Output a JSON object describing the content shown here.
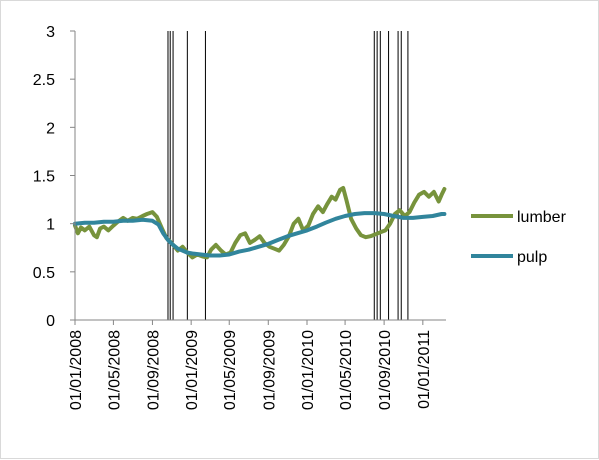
{
  "chart_data": {
    "type": "line",
    "title": "",
    "xlabel": "",
    "ylabel": "",
    "ylim": [
      0,
      3
    ],
    "yticks": [
      0,
      0.5,
      1,
      1.5,
      2,
      2.5,
      3
    ],
    "ytick_labels": [
      "0",
      "0.5",
      "1",
      "1.5",
      "2",
      "2.5",
      "3"
    ],
    "xlim": [
      "2008-01-01",
      "2011-03-15"
    ],
    "xticks": [
      "2008-01-01",
      "2008-05-01",
      "2008-09-01",
      "2009-01-01",
      "2009-05-01",
      "2009-09-01",
      "2010-01-01",
      "2010-05-01",
      "2010-09-01",
      "2011-01-01"
    ],
    "xtick_labels": [
      "01/01/2008",
      "01/05/2008",
      "01/09/2008",
      "01/01/2009",
      "01/05/2009",
      "01/09/2009",
      "01/01/2010",
      "01/05/2010",
      "01/09/2010",
      "01/01/2011"
    ],
    "grid": false,
    "legend": "right",
    "vertical_lines": [
      "2008-10-20",
      "2008-10-27",
      "2008-11-05",
      "2008-12-20",
      "2009-02-15",
      "2010-08-01",
      "2010-08-10",
      "2010-08-20",
      "2010-09-15",
      "2010-10-15",
      "2010-10-25",
      "2010-11-15"
    ],
    "series": [
      {
        "name": "lumber",
        "color": "#77933c",
        "points": [
          [
            "2008-01-01",
            0.98
          ],
          [
            "2008-01-10",
            0.9
          ],
          [
            "2008-01-20",
            0.96
          ],
          [
            "2008-02-01",
            0.93
          ],
          [
            "2008-02-15",
            0.97
          ],
          [
            "2008-03-01",
            0.88
          ],
          [
            "2008-03-10",
            0.86
          ],
          [
            "2008-03-20",
            0.95
          ],
          [
            "2008-04-01",
            0.97
          ],
          [
            "2008-04-15",
            0.93
          ],
          [
            "2008-05-01",
            0.98
          ],
          [
            "2008-05-15",
            1.02
          ],
          [
            "2008-06-01",
            1.06
          ],
          [
            "2008-06-15",
            1.03
          ],
          [
            "2008-07-01",
            1.06
          ],
          [
            "2008-07-15",
            1.05
          ],
          [
            "2008-08-01",
            1.08
          ],
          [
            "2008-08-15",
            1.1
          ],
          [
            "2008-09-01",
            1.12
          ],
          [
            "2008-09-15",
            1.07
          ],
          [
            "2008-10-01",
            0.95
          ],
          [
            "2008-10-15",
            0.85
          ],
          [
            "2008-10-25",
            0.82
          ],
          [
            "2008-11-05",
            0.78
          ],
          [
            "2008-11-20",
            0.72
          ],
          [
            "2008-12-05",
            0.76
          ],
          [
            "2008-12-20",
            0.7
          ],
          [
            "2009-01-05",
            0.65
          ],
          [
            "2009-01-20",
            0.68
          ],
          [
            "2009-02-05",
            0.66
          ],
          [
            "2009-02-20",
            0.65
          ],
          [
            "2009-03-05",
            0.73
          ],
          [
            "2009-03-20",
            0.78
          ],
          [
            "2009-04-05",
            0.72
          ],
          [
            "2009-04-20",
            0.68
          ],
          [
            "2009-05-05",
            0.7
          ],
          [
            "2009-05-20",
            0.8
          ],
          [
            "2009-06-05",
            0.88
          ],
          [
            "2009-06-20",
            0.9
          ],
          [
            "2009-07-05",
            0.8
          ],
          [
            "2009-07-20",
            0.83
          ],
          [
            "2009-08-05",
            0.87
          ],
          [
            "2009-08-20",
            0.8
          ],
          [
            "2009-09-05",
            0.76
          ],
          [
            "2009-09-20",
            0.74
          ],
          [
            "2009-10-05",
            0.72
          ],
          [
            "2009-10-20",
            0.78
          ],
          [
            "2009-11-05",
            0.87
          ],
          [
            "2009-11-20",
            1.0
          ],
          [
            "2009-12-05",
            1.05
          ],
          [
            "2009-12-20",
            0.93
          ],
          [
            "2010-01-05",
            0.98
          ],
          [
            "2010-01-20",
            1.1
          ],
          [
            "2010-02-05",
            1.18
          ],
          [
            "2010-02-20",
            1.12
          ],
          [
            "2010-03-05",
            1.2
          ],
          [
            "2010-03-20",
            1.28
          ],
          [
            "2010-04-01",
            1.25
          ],
          [
            "2010-04-15",
            1.35
          ],
          [
            "2010-04-25",
            1.37
          ],
          [
            "2010-05-05",
            1.25
          ],
          [
            "2010-05-20",
            1.05
          ],
          [
            "2010-06-05",
            0.95
          ],
          [
            "2010-06-20",
            0.88
          ],
          [
            "2010-07-05",
            0.86
          ],
          [
            "2010-07-20",
            0.87
          ],
          [
            "2010-08-05",
            0.89
          ],
          [
            "2010-08-20",
            0.91
          ],
          [
            "2010-09-05",
            0.93
          ],
          [
            "2010-09-20",
            1.0
          ],
          [
            "2010-10-05",
            1.1
          ],
          [
            "2010-10-20",
            1.14
          ],
          [
            "2010-11-05",
            1.08
          ],
          [
            "2010-11-20",
            1.12
          ],
          [
            "2010-12-05",
            1.22
          ],
          [
            "2010-12-20",
            1.3
          ],
          [
            "2011-01-05",
            1.33
          ],
          [
            "2011-01-20",
            1.28
          ],
          [
            "2011-02-05",
            1.33
          ],
          [
            "2011-02-20",
            1.23
          ],
          [
            "2011-03-01",
            1.3
          ],
          [
            "2011-03-10",
            1.36
          ]
        ]
      },
      {
        "name": "pulp",
        "color": "#31859c",
        "points": [
          [
            "2008-01-01",
            1.0
          ],
          [
            "2008-02-01",
            1.01
          ],
          [
            "2008-03-01",
            1.01
          ],
          [
            "2008-04-01",
            1.02
          ],
          [
            "2008-05-01",
            1.02
          ],
          [
            "2008-06-01",
            1.03
          ],
          [
            "2008-07-01",
            1.03
          ],
          [
            "2008-08-01",
            1.04
          ],
          [
            "2008-09-01",
            1.03
          ],
          [
            "2008-09-20",
            0.99
          ],
          [
            "2008-10-05",
            0.9
          ],
          [
            "2008-10-20",
            0.83
          ],
          [
            "2008-11-05",
            0.78
          ],
          [
            "2008-11-20",
            0.74
          ],
          [
            "2008-12-05",
            0.72
          ],
          [
            "2008-12-20",
            0.7
          ],
          [
            "2009-01-05",
            0.69
          ],
          [
            "2009-02-01",
            0.68
          ],
          [
            "2009-03-01",
            0.67
          ],
          [
            "2009-04-01",
            0.67
          ],
          [
            "2009-05-01",
            0.68
          ],
          [
            "2009-06-01",
            0.71
          ],
          [
            "2009-07-01",
            0.73
          ],
          [
            "2009-08-01",
            0.76
          ],
          [
            "2009-09-01",
            0.79
          ],
          [
            "2009-10-01",
            0.83
          ],
          [
            "2009-11-01",
            0.87
          ],
          [
            "2009-12-01",
            0.9
          ],
          [
            "2010-01-01",
            0.93
          ],
          [
            "2010-02-01",
            0.97
          ],
          [
            "2010-03-01",
            1.01
          ],
          [
            "2010-04-01",
            1.05
          ],
          [
            "2010-05-01",
            1.08
          ],
          [
            "2010-06-01",
            1.1
          ],
          [
            "2010-07-01",
            1.11
          ],
          [
            "2010-08-01",
            1.11
          ],
          [
            "2010-09-01",
            1.1
          ],
          [
            "2010-10-01",
            1.08
          ],
          [
            "2010-11-01",
            1.06
          ],
          [
            "2010-12-01",
            1.06
          ],
          [
            "2011-01-01",
            1.07
          ],
          [
            "2011-02-01",
            1.08
          ],
          [
            "2011-03-01",
            1.1
          ],
          [
            "2011-03-10",
            1.1
          ]
        ]
      }
    ]
  }
}
